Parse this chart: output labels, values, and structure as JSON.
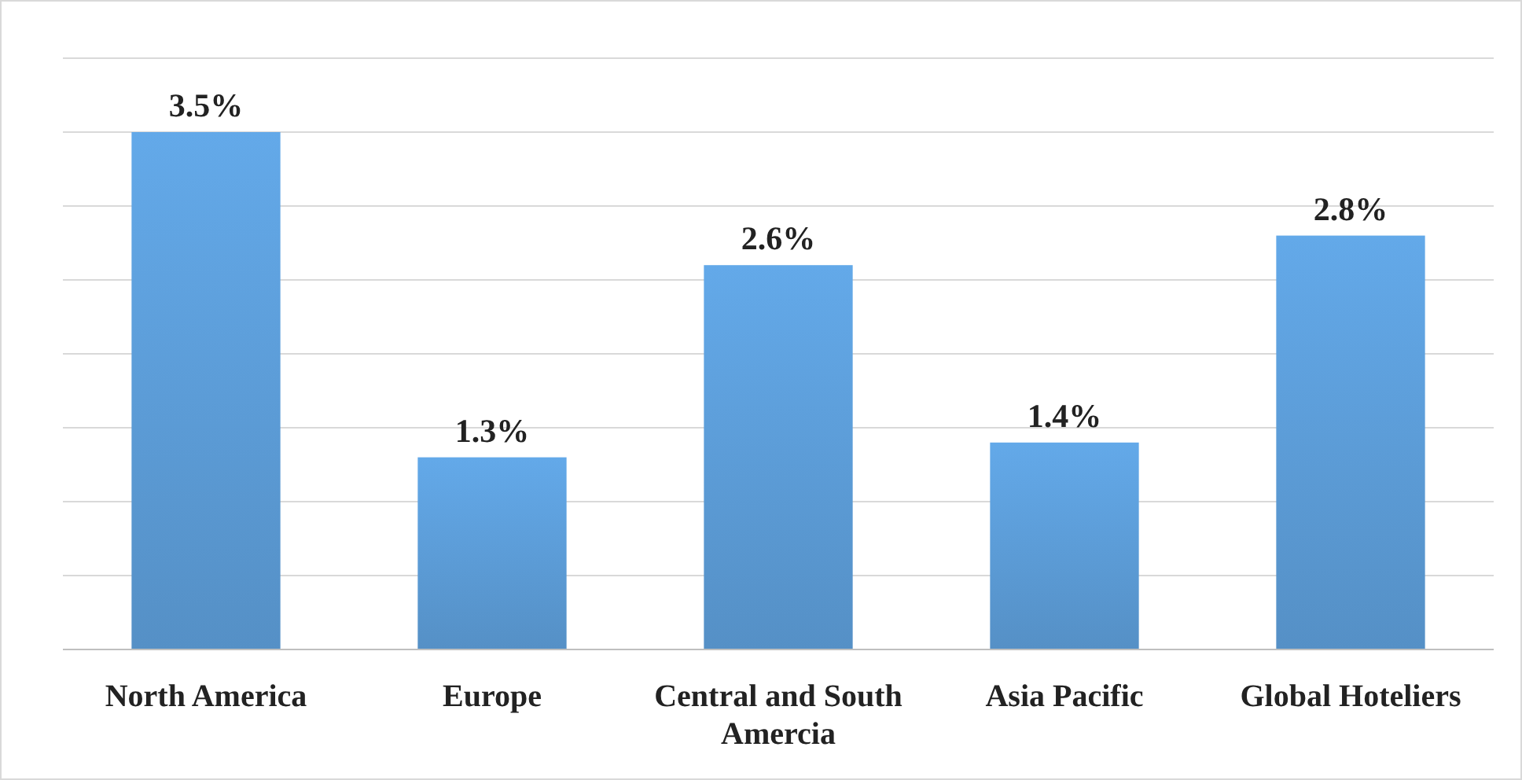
{
  "chart_data": {
    "type": "bar",
    "categories": [
      "North America",
      "Europe",
      "Central and South Amercia",
      "Asia Pacific",
      "Global Hoteliers"
    ],
    "values": [
      3.5,
      1.3,
      2.6,
      1.4,
      2.8
    ],
    "value_labels": [
      "3.5%",
      "1.3%",
      "2.6%",
      "1.4%",
      "2.8%"
    ],
    "color": "#5b9bd5",
    "ylim": [
      0,
      4
    ],
    "yticks": [
      {
        "value": 0,
        "label": null
      },
      {
        "value": 0.5,
        "label": null
      },
      {
        "value": 1,
        "label": null
      },
      {
        "value": 1.5,
        "label": null
      },
      {
        "value": 2,
        "label": null
      },
      {
        "value": 2.5,
        "label": null
      },
      {
        "value": 3,
        "label": null
      },
      {
        "value": 3.5,
        "label": null
      },
      {
        "value": 4,
        "label": null
      }
    ],
    "grid": true,
    "tick_labels": "x"
  }
}
